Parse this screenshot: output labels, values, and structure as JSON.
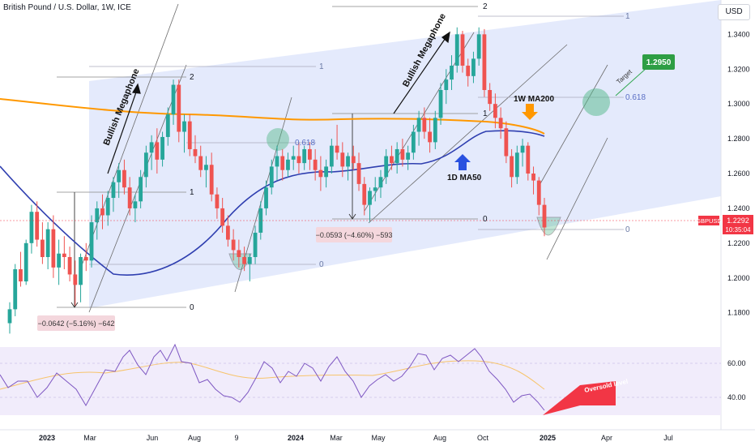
{
  "header": {
    "title": "British Pound / U.S. Dollar, 1W, ICE",
    "currency": "USD"
  },
  "colors": {
    "up": "#26a69a",
    "down": "#ef5350",
    "ma200": "#ff9800",
    "ma50": "#2f3fb0",
    "channel": "#dbe3fb",
    "rsi": "#7e57c2",
    "rsi_ma": "#f7c46c",
    "target_box": "#2e9e44",
    "price_label": "#f23645"
  },
  "chart_data": {
    "type": "candlestick",
    "title": "British Pound / U.S. Dollar, 1W, ICE",
    "x_ticks": [
      "2023",
      "Mar",
      "Jun",
      "Aug",
      "9",
      "2024",
      "Mar",
      "May",
      "Aug",
      "Oct",
      "2025",
      "Apr",
      "Jul"
    ],
    "y_ticks": [
      "1.3400",
      "1.3200",
      "1.3000",
      "1.2800",
      "1.2600",
      "1.2400",
      "1.2200",
      "1.2000",
      "1.1800"
    ],
    "ylim": [
      1.164,
      1.356
    ],
    "rsi_ticks": [
      "60.00",
      "40.00"
    ],
    "last_price": {
      "symbol": "GBPUSD",
      "value": "1.2292",
      "countdown": "10:35:04"
    },
    "annotations": {
      "pattern_1": "Bullish Megaphone",
      "pattern_2": "Bullish Megaphone",
      "ma200_label": "1W MA200",
      "ma50_label": "1D MA50",
      "target_label": "Target",
      "target_value": "1.2950",
      "oversold_label": "Oversold level",
      "measure_1": "−0.0642 (−5.16%) −642",
      "measure_2": "−0.0593 (−4.60%) −593"
    },
    "fib_labels": {
      "fib_2_a": "2",
      "fib_1_a": "1",
      "fib_0_a": "0",
      "fib_0_b": "0",
      "fib_1_b": "1",
      "fib_0618_a": "0.618",
      "fib_0_c": "0",
      "fib_1_c": "1",
      "fib_1_d": "1",
      "fib_2_b": "2",
      "fib_0_d": "0",
      "fib_0618_b": "0.618"
    },
    "candles": [
      [
        1.174,
        1.186,
        1.168,
        1.182
      ],
      [
        1.182,
        1.208,
        1.178,
        1.205
      ],
      [
        1.205,
        1.215,
        1.195,
        1.198
      ],
      [
        1.198,
        1.222,
        1.196,
        1.22
      ],
      [
        1.22,
        1.242,
        1.214,
        1.238
      ],
      [
        1.238,
        1.244,
        1.218,
        1.222
      ],
      [
        1.222,
        1.232,
        1.208,
        1.212
      ],
      [
        1.212,
        1.232,
        1.205,
        1.228
      ],
      [
        1.228,
        1.236,
        1.2,
        1.206
      ],
      [
        1.206,
        1.222,
        1.196,
        1.214
      ],
      [
        1.214,
        1.224,
        1.205,
        1.212
      ],
      [
        1.212,
        1.218,
        1.198,
        1.202
      ],
      [
        1.202,
        1.21,
        1.184,
        1.196
      ],
      [
        1.196,
        1.214,
        1.186,
        1.212
      ],
      [
        1.212,
        1.22,
        1.204,
        1.21
      ],
      [
        1.21,
        1.236,
        1.206,
        1.232
      ],
      [
        1.232,
        1.244,
        1.222,
        1.24
      ],
      [
        1.24,
        1.248,
        1.228,
        1.236
      ],
      [
        1.236,
        1.25,
        1.23,
        1.246
      ],
      [
        1.246,
        1.258,
        1.238,
        1.255
      ],
      [
        1.255,
        1.266,
        1.246,
        1.262
      ],
      [
        1.262,
        1.268,
        1.248,
        1.252
      ],
      [
        1.252,
        1.258,
        1.236,
        1.24
      ],
      [
        1.24,
        1.248,
        1.232,
        1.244
      ],
      [
        1.244,
        1.262,
        1.24,
        1.258
      ],
      [
        1.258,
        1.276,
        1.252,
        1.272
      ],
      [
        1.272,
        1.282,
        1.262,
        1.278
      ],
      [
        1.278,
        1.286,
        1.26,
        1.268
      ],
      [
        1.268,
        1.284,
        1.264,
        1.281
      ],
      [
        1.281,
        1.298,
        1.276,
        1.294
      ],
      [
        1.294,
        1.314,
        1.288,
        1.311
      ],
      [
        1.311,
        1.314,
        1.278,
        1.284
      ],
      [
        1.284,
        1.294,
        1.272,
        1.29
      ],
      [
        1.29,
        1.294,
        1.27,
        1.274
      ],
      [
        1.274,
        1.282,
        1.266,
        1.27
      ],
      [
        1.27,
        1.276,
        1.258,
        1.262
      ],
      [
        1.262,
        1.27,
        1.252,
        1.265
      ],
      [
        1.265,
        1.272,
        1.244,
        1.248
      ],
      [
        1.248,
        1.252,
        1.234,
        1.24
      ],
      [
        1.24,
        1.246,
        1.226,
        1.23
      ],
      [
        1.23,
        1.236,
        1.218,
        1.222
      ],
      [
        1.222,
        1.228,
        1.21,
        1.216
      ],
      [
        1.216,
        1.222,
        1.206,
        1.212
      ],
      [
        1.212,
        1.218,
        1.204,
        1.208
      ],
      [
        1.208,
        1.214,
        1.198,
        1.212
      ],
      [
        1.212,
        1.23,
        1.208,
        1.226
      ],
      [
        1.226,
        1.244,
        1.222,
        1.24
      ],
      [
        1.24,
        1.256,
        1.236,
        1.252
      ],
      [
        1.252,
        1.268,
        1.248,
        1.264
      ],
      [
        1.264,
        1.276,
        1.256,
        1.27
      ],
      [
        1.27,
        1.274,
        1.256,
        1.262
      ],
      [
        1.262,
        1.272,
        1.258,
        1.268
      ],
      [
        1.268,
        1.276,
        1.262,
        1.27
      ],
      [
        1.27,
        1.278,
        1.26,
        1.266
      ],
      [
        1.266,
        1.276,
        1.262,
        1.274
      ],
      [
        1.274,
        1.278,
        1.262,
        1.268
      ],
      [
        1.268,
        1.274,
        1.256,
        1.262
      ],
      [
        1.262,
        1.27,
        1.25,
        1.258
      ],
      [
        1.258,
        1.268,
        1.252,
        1.264
      ],
      [
        1.264,
        1.28,
        1.26,
        1.276
      ],
      [
        1.276,
        1.288,
        1.268,
        1.272
      ],
      [
        1.272,
        1.278,
        1.258,
        1.264
      ],
      [
        1.264,
        1.272,
        1.256,
        1.27
      ],
      [
        1.27,
        1.276,
        1.262,
        1.266
      ],
      [
        1.266,
        1.272,
        1.25,
        1.254
      ],
      [
        1.254,
        1.258,
        1.236,
        1.242
      ],
      [
        1.242,
        1.252,
        1.232,
        1.25
      ],
      [
        1.25,
        1.258,
        1.244,
        1.252
      ],
      [
        1.252,
        1.262,
        1.246,
        1.258
      ],
      [
        1.258,
        1.274,
        1.254,
        1.27
      ],
      [
        1.27,
        1.276,
        1.262,
        1.266
      ],
      [
        1.266,
        1.278,
        1.26,
        1.274
      ],
      [
        1.274,
        1.28,
        1.264,
        1.268
      ],
      [
        1.268,
        1.276,
        1.262,
        1.272
      ],
      [
        1.272,
        1.288,
        1.268,
        1.284
      ],
      [
        1.284,
        1.296,
        1.276,
        1.292
      ],
      [
        1.292,
        1.298,
        1.28,
        1.284
      ],
      [
        1.284,
        1.292,
        1.272,
        1.278
      ],
      [
        1.278,
        1.296,
        1.274,
        1.292
      ],
      [
        1.292,
        1.312,
        1.288,
        1.308
      ],
      [
        1.308,
        1.32,
        1.3,
        1.314
      ],
      [
        1.314,
        1.328,
        1.308,
        1.322
      ],
      [
        1.322,
        1.344,
        1.318,
        1.34
      ],
      [
        1.34,
        1.342,
        1.318,
        1.322
      ],
      [
        1.322,
        1.326,
        1.31,
        1.316
      ],
      [
        1.316,
        1.33,
        1.312,
        1.326
      ],
      [
        1.326,
        1.344,
        1.322,
        1.34
      ],
      [
        1.34,
        1.343,
        1.304,
        1.308
      ],
      [
        1.308,
        1.312,
        1.296,
        1.3
      ],
      [
        1.3,
        1.306,
        1.286,
        1.292
      ],
      [
        1.292,
        1.298,
        1.28,
        1.286
      ],
      [
        1.286,
        1.29,
        1.266,
        1.27
      ],
      [
        1.27,
        1.274,
        1.252,
        1.258
      ],
      [
        1.258,
        1.276,
        1.254,
        1.272
      ],
      [
        1.272,
        1.28,
        1.264,
        1.276
      ],
      [
        1.276,
        1.278,
        1.256,
        1.26
      ],
      [
        1.26,
        1.264,
        1.248,
        1.256
      ],
      [
        1.256,
        1.258,
        1.236,
        1.242
      ],
      [
        1.242,
        1.246,
        1.224,
        1.229
      ]
    ]
  }
}
